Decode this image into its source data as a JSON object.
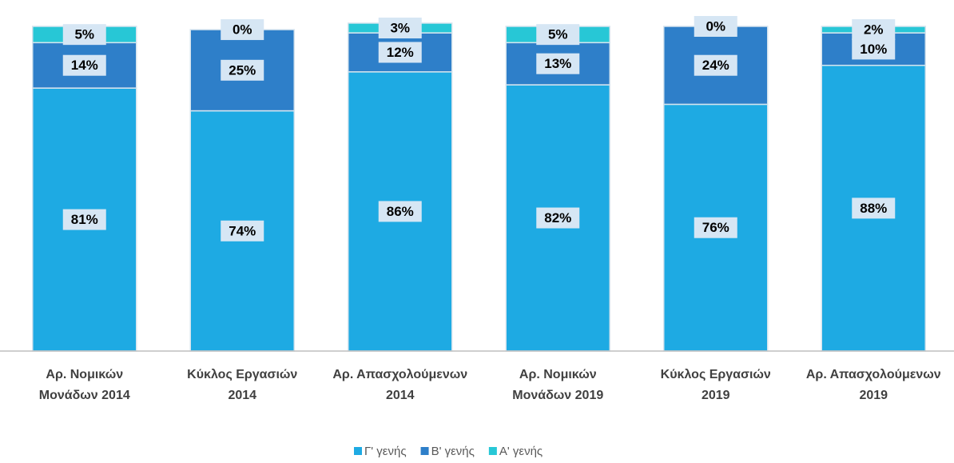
{
  "chart_data": {
    "type": "stacked_bar",
    "categories": [
      "Αρ. Νομικών Μονάδων 2014",
      "Κύκλος Εργασιών 2014",
      "Αρ. Απασχολούμενων 2014",
      "Αρ. Νομικών Μονάδων 2019",
      "Κύκλος Εργασιών 2019",
      "Αρ. Απασχολούμενων 2019"
    ],
    "series": [
      {
        "name": "Γ' γενής",
        "color": "#1eaae3",
        "values": [
          81,
          74,
          86,
          82,
          76,
          88
        ],
        "value_labels": [
          "81%",
          "74%",
          "86%",
          "82%",
          "76%",
          "88%"
        ]
      },
      {
        "name": "Β' γενής",
        "color": "#2e7fc9",
        "values": [
          14,
          25,
          12,
          13,
          24,
          10
        ],
        "value_labels": [
          "14%",
          "25%",
          "12%",
          "13%",
          "24%",
          "10%"
        ]
      },
      {
        "name": "Α' γενής",
        "color": "#27c7d6",
        "values": [
          5,
          0,
          3,
          5,
          0,
          2
        ],
        "value_labels": [
          "5%",
          "0%",
          "3%",
          "5%",
          "0%",
          "2%"
        ]
      }
    ],
    "ylim": [
      0,
      100
    ]
  }
}
